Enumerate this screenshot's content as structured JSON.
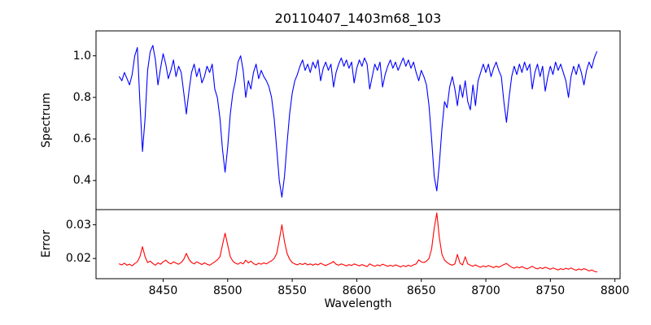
{
  "figure": {
    "title": "20110407_1403m68_103",
    "background_color": "#ffffff",
    "spine_color": "#000000"
  },
  "chart_data": [
    {
      "type": "line",
      "panel": "spectrum",
      "title": "20110407_1403m68_103",
      "ylabel": "Spectrum",
      "line_color": "#0000ff",
      "grid": false,
      "legend": "none",
      "xlim": [
        8398,
        8804
      ],
      "ylim": [
        0.26,
        1.12
      ],
      "yticks": [
        "0.4",
        "0.6",
        "0.8",
        "1.0"
      ],
      "x_start": 8416,
      "x_step": 2,
      "values": [
        0.9,
        0.88,
        0.92,
        0.89,
        0.86,
        0.91,
        1.0,
        1.04,
        0.78,
        0.54,
        0.7,
        0.93,
        1.02,
        1.05,
        0.98,
        0.86,
        0.94,
        1.01,
        0.96,
        0.89,
        0.93,
        0.98,
        0.9,
        0.95,
        0.92,
        0.82,
        0.72,
        0.83,
        0.92,
        0.96,
        0.9,
        0.94,
        0.87,
        0.9,
        0.95,
        0.92,
        0.96,
        0.84,
        0.8,
        0.7,
        0.55,
        0.44,
        0.56,
        0.72,
        0.82,
        0.88,
        0.97,
        1.0,
        0.93,
        0.8,
        0.88,
        0.84,
        0.92,
        0.96,
        0.89,
        0.93,
        0.9,
        0.88,
        0.85,
        0.8,
        0.7,
        0.55,
        0.4,
        0.32,
        0.42,
        0.58,
        0.72,
        0.82,
        0.88,
        0.91,
        0.95,
        0.98,
        0.93,
        0.96,
        0.92,
        0.97,
        0.94,
        0.98,
        0.88,
        0.94,
        0.97,
        0.93,
        0.96,
        0.85,
        0.92,
        0.96,
        0.99,
        0.95,
        0.98,
        0.94,
        0.97,
        0.87,
        0.94,
        0.98,
        0.95,
        0.99,
        0.96,
        0.84,
        0.9,
        0.96,
        0.93,
        0.97,
        0.85,
        0.91,
        0.95,
        0.98,
        0.94,
        0.97,
        0.93,
        0.96,
        0.99,
        0.95,
        0.98,
        0.94,
        0.97,
        0.92,
        0.88,
        0.93,
        0.9,
        0.86,
        0.76,
        0.6,
        0.42,
        0.35,
        0.48,
        0.65,
        0.78,
        0.75,
        0.85,
        0.9,
        0.84,
        0.76,
        0.86,
        0.8,
        0.88,
        0.78,
        0.74,
        0.86,
        0.76,
        0.88,
        0.92,
        0.96,
        0.92,
        0.96,
        0.9,
        0.94,
        0.97,
        0.93,
        0.9,
        0.78,
        0.68,
        0.8,
        0.9,
        0.95,
        0.91,
        0.96,
        0.92,
        0.97,
        0.93,
        0.96,
        0.84,
        0.92,
        0.96,
        0.9,
        0.95,
        0.83,
        0.9,
        0.95,
        0.91,
        0.97,
        0.93,
        0.96,
        0.92,
        0.88,
        0.8,
        0.9,
        0.95,
        0.91,
        0.96,
        0.92,
        0.86,
        0.93,
        0.97,
        0.94,
        0.99,
        1.02
      ]
    },
    {
      "type": "line",
      "panel": "error",
      "ylabel": "Error",
      "xlabel": "Wavelength",
      "line_color": "#ff0000",
      "grid": false,
      "legend": "none",
      "xlim": [
        8398,
        8804
      ],
      "ylim": [
        0.014,
        0.0345
      ],
      "yticks": [
        "0.02",
        "0.03"
      ],
      "xticks": [
        "8450",
        "8500",
        "8550",
        "8600",
        "8650",
        "8700",
        "8750",
        "8800"
      ],
      "x_start": 8416,
      "x_step": 2,
      "values": [
        0.0184,
        0.0181,
        0.0186,
        0.018,
        0.0183,
        0.0178,
        0.0185,
        0.019,
        0.0205,
        0.0235,
        0.0205,
        0.0188,
        0.0192,
        0.0185,
        0.018,
        0.0187,
        0.0183,
        0.019,
        0.0195,
        0.0188,
        0.0184,
        0.019,
        0.0186,
        0.0183,
        0.0188,
        0.0198,
        0.0215,
        0.0198,
        0.0188,
        0.0184,
        0.019,
        0.0186,
        0.0182,
        0.0187,
        0.0183,
        0.018,
        0.0185,
        0.019,
        0.0196,
        0.0205,
        0.024,
        0.0275,
        0.024,
        0.0205,
        0.0192,
        0.0186,
        0.0183,
        0.0188,
        0.0184,
        0.0195,
        0.0187,
        0.0192,
        0.0185,
        0.0181,
        0.0186,
        0.0183,
        0.0187,
        0.0184,
        0.0189,
        0.0193,
        0.02,
        0.0215,
        0.0255,
        0.03,
        0.025,
        0.0215,
        0.0198,
        0.0188,
        0.0184,
        0.0181,
        0.0185,
        0.0182,
        0.0186,
        0.0181,
        0.0184,
        0.018,
        0.0184,
        0.0181,
        0.0186,
        0.0182,
        0.0179,
        0.0183,
        0.0186,
        0.0191,
        0.0183,
        0.018,
        0.0184,
        0.0181,
        0.0178,
        0.0182,
        0.0179,
        0.0184,
        0.0181,
        0.0178,
        0.0182,
        0.0179,
        0.0176,
        0.0184,
        0.018,
        0.0177,
        0.0181,
        0.0178,
        0.0183,
        0.018,
        0.0177,
        0.018,
        0.0177,
        0.0181,
        0.0178,
        0.0175,
        0.0179,
        0.0176,
        0.018,
        0.0177,
        0.0181,
        0.0184,
        0.0196,
        0.019,
        0.0188,
        0.0192,
        0.02,
        0.0228,
        0.029,
        0.0335,
        0.0262,
        0.0212,
        0.0195,
        0.0188,
        0.0183,
        0.018,
        0.0184,
        0.0212,
        0.0186,
        0.0181,
        0.0205,
        0.0184,
        0.018,
        0.0177,
        0.0181,
        0.0177,
        0.0174,
        0.0178,
        0.0175,
        0.0179,
        0.0176,
        0.0173,
        0.0177,
        0.0174,
        0.0178,
        0.0182,
        0.0185,
        0.0179,
        0.0174,
        0.0171,
        0.0175,
        0.0172,
        0.0176,
        0.0172,
        0.0169,
        0.0173,
        0.0177,
        0.0172,
        0.0169,
        0.0173,
        0.017,
        0.0174,
        0.0171,
        0.0168,
        0.0172,
        0.0169,
        0.0166,
        0.017,
        0.0167,
        0.0171,
        0.0168,
        0.0172,
        0.0168,
        0.0165,
        0.0169,
        0.0166,
        0.017,
        0.0167,
        0.0163,
        0.0166,
        0.0162,
        0.016
      ]
    }
  ]
}
